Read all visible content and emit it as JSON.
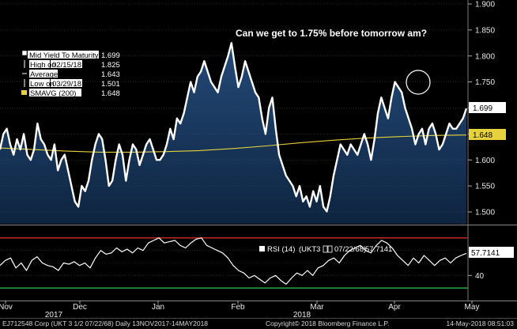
{
  "chart_data": [
    {
      "type": "line",
      "annotation": "Can we get to 1.75% before tomorrow am?",
      "y_ticks": [
        "1.900",
        "1.850",
        "1.800",
        "1.750",
        "1.700",
        "1.650",
        "1.600",
        "1.550",
        "1.500"
      ],
      "ylim": [
        1.48,
        1.9
      ],
      "x_ticks": [
        "Nov",
        "Dec",
        "Jan",
        "Feb",
        "Mar",
        "Apr",
        "May"
      ],
      "year_labels": [
        "2017",
        "2018"
      ],
      "legend": {
        "mid": {
          "label": "Mid Yield To Maturity",
          "value": "1.699"
        },
        "high": {
          "label": "High on",
          "date": "02/15/18",
          "value": "1.825"
        },
        "average": {
          "label": "Average",
          "value": "1.643"
        },
        "low": {
          "label": "Low on",
          "date": "03/29/18",
          "value": "1.501"
        },
        "smavg": {
          "label": "SMAVG (200)",
          "value": "1.648"
        }
      },
      "last_value_tag": "1.699",
      "smavg_tag": "1.648",
      "series": [
        {
          "name": "Mid Yield To Maturity",
          "color": "#ffffff",
          "values": [
            1.62,
            1.65,
            1.66,
            1.63,
            1.61,
            1.64,
            1.62,
            1.65,
            1.61,
            1.6,
            1.62,
            1.67,
            1.64,
            1.63,
            1.61,
            1.6,
            1.63,
            1.58,
            1.6,
            1.61,
            1.58,
            1.55,
            1.52,
            1.51,
            1.55,
            1.54,
            1.56,
            1.6,
            1.63,
            1.65,
            1.64,
            1.6,
            1.55,
            1.56,
            1.6,
            1.63,
            1.61,
            1.56,
            1.6,
            1.63,
            1.62,
            1.59,
            1.61,
            1.63,
            1.64,
            1.62,
            1.6,
            1.6,
            1.61,
            1.63,
            1.66,
            1.64,
            1.68,
            1.67,
            1.69,
            1.72,
            1.75,
            1.73,
            1.76,
            1.77,
            1.79,
            1.77,
            1.75,
            1.74,
            1.73,
            1.76,
            1.78,
            1.8,
            1.825,
            1.78,
            1.74,
            1.76,
            1.79,
            1.77,
            1.75,
            1.73,
            1.72,
            1.68,
            1.65,
            1.7,
            1.72,
            1.66,
            1.61,
            1.59,
            1.57,
            1.56,
            1.55,
            1.53,
            1.55,
            1.52,
            1.53,
            1.51,
            1.54,
            1.52,
            1.55,
            1.51,
            1.501,
            1.53,
            1.57,
            1.6,
            1.63,
            1.62,
            1.61,
            1.63,
            1.62,
            1.61,
            1.63,
            1.65,
            1.63,
            1.6,
            1.64,
            1.69,
            1.72,
            1.7,
            1.68,
            1.72,
            1.75,
            1.74,
            1.73,
            1.7,
            1.68,
            1.66,
            1.63,
            1.65,
            1.66,
            1.63,
            1.66,
            1.67,
            1.65,
            1.62,
            1.63,
            1.65,
            1.67,
            1.66,
            1.66,
            1.67,
            1.68,
            1.699
          ]
        },
        {
          "name": "SMAVG (200)",
          "color": "#e6d23c",
          "values": [
            1.623,
            1.62,
            1.617,
            1.615,
            1.615,
            1.616,
            1.618,
            1.622,
            1.627,
            1.633,
            1.638,
            1.642,
            1.645,
            1.647,
            1.648
          ]
        }
      ]
    },
    {
      "type": "line",
      "legend": {
        "label": "RSI (14)",
        "security": "(UKT3",
        "date": "07/22/68)",
        "value": "57.7141"
      },
      "y_ticks": [
        "40"
      ],
      "ylim": [
        20,
        80
      ],
      "levels": [
        70,
        30
      ],
      "last_value_tag": "57.7141",
      "series": [
        {
          "name": "RSI (14)",
          "color": "#ffffff",
          "values": [
            48,
            52,
            54,
            46,
            50,
            44,
            52,
            55,
            50,
            48,
            47,
            44,
            50,
            49,
            51,
            48,
            50,
            46,
            54,
            60,
            57,
            58,
            62,
            59,
            61,
            58,
            62,
            60,
            66,
            68,
            70,
            66,
            67,
            68,
            64,
            62,
            66,
            69,
            70,
            64,
            62,
            60,
            58,
            54,
            48,
            44,
            42,
            38,
            40,
            37,
            34,
            38,
            40,
            36,
            33,
            38,
            42,
            40,
            44,
            40,
            46,
            48,
            52,
            54,
            50,
            56,
            60,
            62,
            64,
            60,
            58,
            64,
            68,
            66,
            62,
            56,
            52,
            48,
            54,
            50,
            56,
            52,
            48,
            52,
            54,
            50,
            54,
            56,
            57.7141
          ]
        }
      ]
    }
  ],
  "footer": {
    "left": "EJ712548 Corp (UKT 3 1/2 07/22/68)  Daily 13NOV2017-14MAY2018",
    "center": "Copyright© 2018 Bloomberg Finance L.P.",
    "right": "14-May-2018 08:51:03"
  }
}
